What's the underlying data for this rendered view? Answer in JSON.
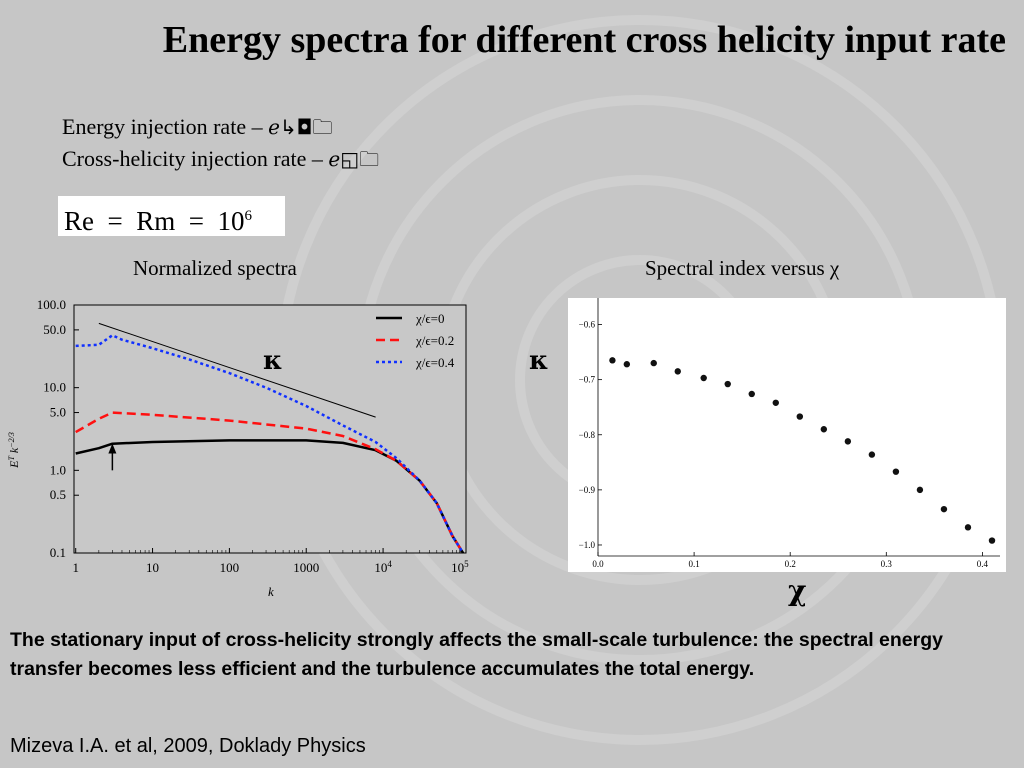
{
  "slide": {
    "title": "Energy spectra for different cross helicity input rate",
    "energy_line": "Energy injection rate – ",
    "energy_symbol": "ℯ↳◘🗀",
    "helicity_line": "Cross-helicity injection rate – ",
    "helicity_symbol": "ℯ◱🗀",
    "equation_text": "Re  =  Rm  =  10",
    "equation_exp": "6",
    "left_chart_title": "Normalized spectra",
    "right_chart_title": "Spectral index versus χ",
    "kappa_left": "κ",
    "kappa_right": "κ",
    "chi_label": "χ",
    "conclusion": "The stationary input of cross-helicity strongly affects the small-scale turbulence: the spectral energy transfer becomes less efficient and the turbulence accumulates the total energy.",
    "citation": "Mizeva I.A. et al, 2009, Doklady Physics"
  },
  "chart_data": [
    {
      "type": "line",
      "x_scale": "log",
      "y_scale": "log",
      "xlabel": "k",
      "ylabel": "E^T k^{-2/3}",
      "xlim": [
        0.95,
        120000
      ],
      "ylim": [
        0.1,
        100
      ],
      "x_ticks": [
        "1",
        "10",
        "100",
        "1000",
        "10^4",
        "10^5"
      ],
      "x_tick_values": [
        1,
        10,
        100,
        1000,
        10000,
        100000
      ],
      "y_ticks": [
        "0.1",
        "0.5",
        "1.0",
        "5.0",
        "10.0",
        "50.0",
        "100.0"
      ],
      "y_tick_values": [
        0.1,
        0.5,
        1,
        5,
        10,
        50,
        100
      ],
      "legend_position": "top-right",
      "series": [
        {
          "name": "χ/ϵ=0",
          "color": "#000000",
          "dash": "solid",
          "x": [
            1,
            2,
            3,
            10,
            100,
            1000,
            3000,
            8000,
            15000,
            30000,
            50000,
            80000,
            110000
          ],
          "y": [
            1.6,
            1.85,
            2.1,
            2.2,
            2.3,
            2.3,
            2.15,
            1.75,
            1.3,
            0.75,
            0.4,
            0.16,
            0.1
          ]
        },
        {
          "name": "χ/ϵ=0.2",
          "color": "#ff1010",
          "dash": "dashed",
          "x": [
            1,
            2,
            3,
            10,
            100,
            1000,
            3000,
            8000,
            15000,
            30000,
            50000,
            80000,
            110000
          ],
          "y": [
            2.9,
            4.2,
            5.0,
            4.7,
            4.0,
            3.2,
            2.6,
            1.8,
            1.3,
            0.75,
            0.4,
            0.16,
            0.1
          ]
        },
        {
          "name": "χ/ϵ=0.4",
          "color": "#1030ff",
          "dash": "dotted",
          "x": [
            1,
            2,
            3,
            4,
            10,
            30,
            100,
            300,
            1000,
            3000,
            8000,
            15000,
            30000,
            50000,
            80000,
            110000
          ],
          "y": [
            32,
            33,
            43,
            38,
            30,
            22,
            15,
            10,
            6,
            3.5,
            2.2,
            1.4,
            0.75,
            0.4,
            0.16,
            0.1
          ]
        }
      ],
      "reference_line": {
        "x": [
          2,
          8000
        ],
        "y": [
          60,
          4.4
        ],
        "color": "#000000"
      },
      "arrow": {
        "x": 3,
        "y_from": 1.0,
        "y_to": 2.0
      }
    },
    {
      "type": "scatter",
      "xlim": [
        0.0,
        0.41
      ],
      "ylim": [
        -1.02,
        -0.57
      ],
      "x_ticks": [
        "0.0",
        "0.1",
        "0.2",
        "0.3",
        "0.4"
      ],
      "x_tick_values": [
        0.0,
        0.1,
        0.2,
        0.3,
        0.4
      ],
      "y_ticks": [
        "−0.6",
        "−0.7",
        "−0.8",
        "−0.9",
        "−1.0"
      ],
      "y_tick_values": [
        -0.6,
        -0.7,
        -0.8,
        -0.9,
        -1.0
      ],
      "points": {
        "x": [
          0.015,
          0.03,
          0.058,
          0.083,
          0.11,
          0.135,
          0.16,
          0.185,
          0.21,
          0.235,
          0.26,
          0.285,
          0.31,
          0.335,
          0.36,
          0.385,
          0.41
        ],
        "y": [
          -0.665,
          -0.672,
          -0.67,
          -0.685,
          -0.697,
          -0.708,
          -0.726,
          -0.742,
          -0.767,
          -0.79,
          -0.812,
          -0.836,
          -0.867,
          -0.9,
          -0.935,
          -0.968,
          -0.992
        ]
      }
    }
  ]
}
